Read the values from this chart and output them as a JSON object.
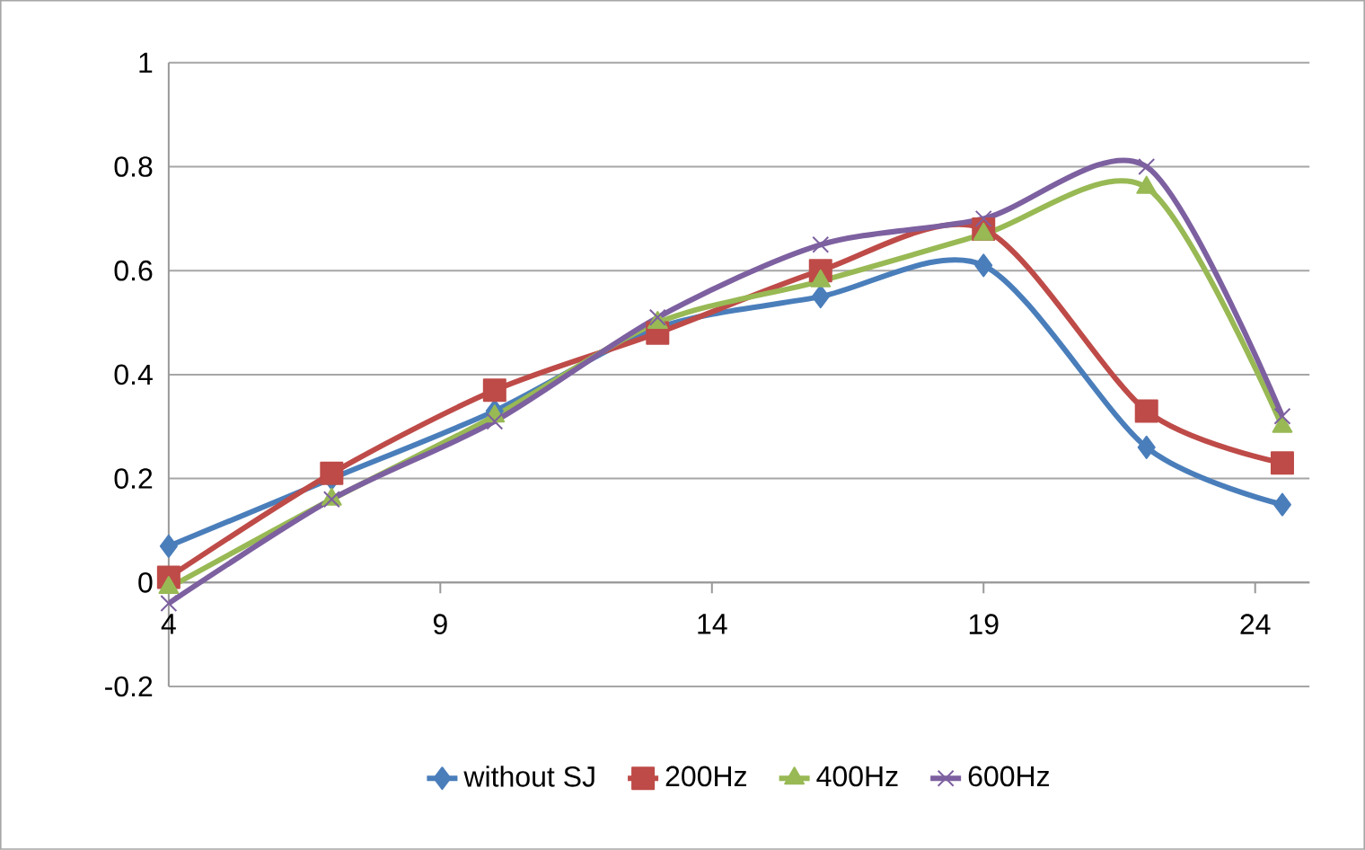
{
  "chart_data": {
    "type": "line",
    "x": [
      4,
      7,
      10,
      13,
      16,
      19,
      22,
      24.5
    ],
    "xlim": [
      4,
      25
    ],
    "xticks": [
      4,
      9,
      14,
      19,
      24
    ],
    "ylim": [
      -0.2,
      1
    ],
    "yticks": [
      -0.2,
      0,
      0.2,
      0.4,
      0.6,
      0.8,
      1
    ],
    "grid": "y",
    "legend": "bottom",
    "line_style": "solid",
    "series": [
      {
        "name": "without SJ",
        "color": "#4a7ebb",
        "marker": "diamond",
        "values": [
          0.07,
          0.2,
          0.33,
          0.49,
          0.55,
          0.61,
          0.26,
          0.15
        ]
      },
      {
        "name": "200Hz",
        "color": "#be4b48",
        "marker": "square",
        "values": [
          0.01,
          0.21,
          0.37,
          0.48,
          0.6,
          0.68,
          0.33,
          0.23
        ]
      },
      {
        "name": "400Hz",
        "color": "#98b954",
        "marker": "triangle",
        "values": [
          -0.01,
          0.16,
          0.32,
          0.5,
          0.58,
          0.67,
          0.76,
          0.3
        ]
      },
      {
        "name": "600Hz",
        "color": "#7d60a0",
        "marker": "cross",
        "values": [
          -0.04,
          0.16,
          0.31,
          0.51,
          0.65,
          0.7,
          0.8,
          0.32
        ]
      }
    ]
  }
}
